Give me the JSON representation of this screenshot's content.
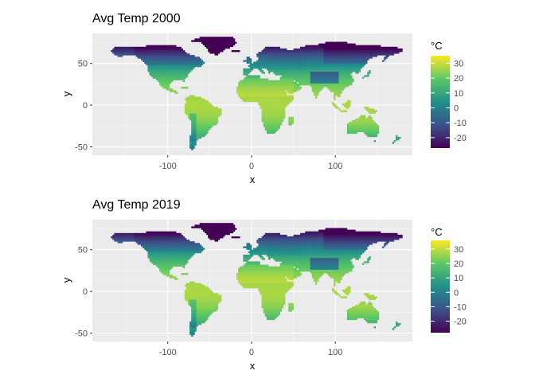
{
  "chart_data": [
    {
      "type": "heatmap",
      "title": "Avg Temp 2000",
      "xlabel": "x",
      "ylabel": "y",
      "xlim": [
        -190,
        192
      ],
      "ylim": [
        -60,
        86
      ],
      "x_ticks": [
        -100,
        0,
        100
      ],
      "y_ticks": [
        -50,
        0,
        50
      ],
      "grid": true,
      "legend": {
        "title": "°C",
        "placement": "right",
        "ticks": [
          30,
          20,
          10,
          0,
          -10,
          -20
        ],
        "range": [
          -27,
          35
        ]
      },
      "colorscale": "viridis"
    },
    {
      "type": "heatmap",
      "title": "Avg Temp 2019",
      "xlabel": "x",
      "ylabel": "y",
      "xlim": [
        -190,
        192
      ],
      "ylim": [
        -60,
        86
      ],
      "x_ticks": [
        -100,
        0,
        100
      ],
      "y_ticks": [
        -50,
        0,
        50
      ],
      "grid": true,
      "legend": {
        "title": "°C",
        "placement": "right",
        "ticks": [
          30,
          20,
          10,
          0,
          -10,
          -20
        ],
        "range": [
          -28,
          36
        ]
      },
      "colorscale": "viridis"
    }
  ],
  "colors": {
    "panel_background": "#ebebeb",
    "grid_major": "#ffffff",
    "axis_text": "#4d4d4d",
    "viridis": [
      "#440154",
      "#3b528b",
      "#21908c",
      "#5dc863",
      "#fde725"
    ]
  }
}
